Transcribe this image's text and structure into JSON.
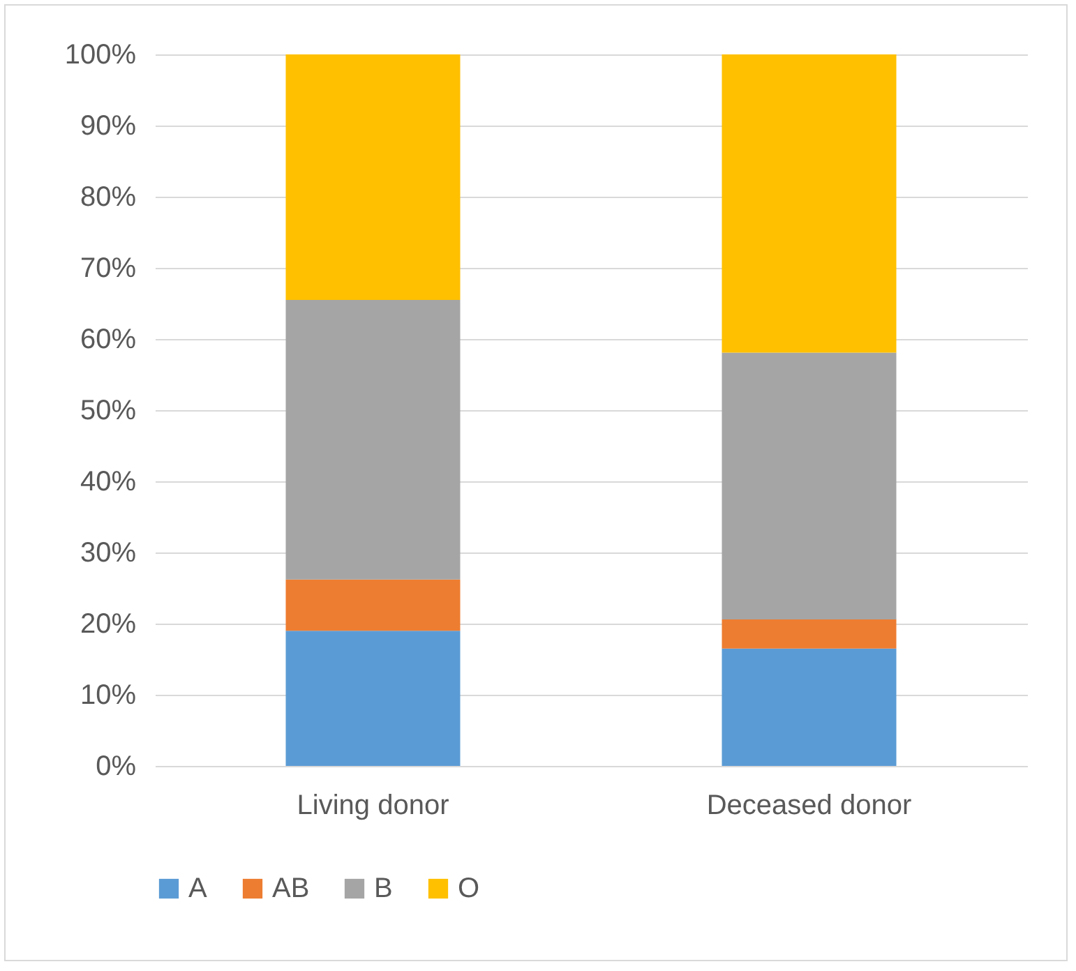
{
  "chart_data": {
    "type": "bar",
    "stacked": true,
    "categories": [
      "Living donor",
      "Deceased donor"
    ],
    "series": [
      {
        "name": "A",
        "color": "#5b9bd5",
        "values": [
          19,
          16.5
        ]
      },
      {
        "name": "AB",
        "color": "#ed7d31",
        "values": [
          7.2,
          4.1
        ]
      },
      {
        "name": "B",
        "color": "#a5a5a5",
        "values": [
          39.3,
          37.5
        ]
      },
      {
        "name": "O",
        "color": "#ffc000",
        "values": [
          34.5,
          41.9
        ]
      }
    ],
    "ylim": [
      0,
      100
    ],
    "yticks": [
      {
        "value": 0,
        "label": "0%"
      },
      {
        "value": 10,
        "label": "10%"
      },
      {
        "value": 20,
        "label": "20%"
      },
      {
        "value": 30,
        "label": "30%"
      },
      {
        "value": 40,
        "label": "40%"
      },
      {
        "value": 50,
        "label": "50%"
      },
      {
        "value": 60,
        "label": "60%"
      },
      {
        "value": 70,
        "label": "70%"
      },
      {
        "value": 80,
        "label": "80%"
      },
      {
        "value": 90,
        "label": "90%"
      },
      {
        "value": 100,
        "label": "100%"
      }
    ],
    "grid": "y",
    "legend": "bottom"
  }
}
